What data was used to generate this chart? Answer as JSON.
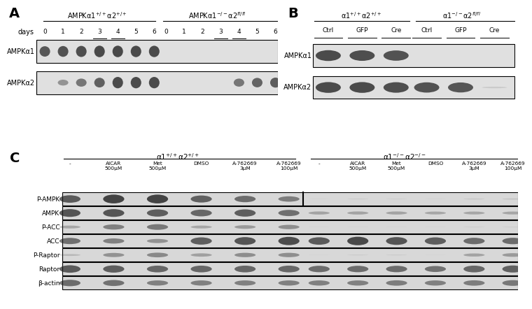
{
  "bg_color": "#ffffff",
  "panel_A": {
    "label": "A",
    "header1": "AMPKα1$^{+/+}$α2$^{+/+}$",
    "header2": "AMPKα1$^{-/-}$α2$^{fl/fl}$",
    "days_label": "days",
    "days_g1": [
      "0",
      "1",
      "2",
      "3",
      "4",
      "5",
      "6"
    ],
    "days_g2": [
      "0",
      "1",
      "2",
      "3",
      "4",
      "5",
      "6"
    ],
    "underline_days": [
      "3",
      "4"
    ],
    "row_labels": [
      "AMPKα1",
      "AMPKα2"
    ],
    "box_color": "#e0e0e0",
    "band_color": "#1a1a1a",
    "ampka1_g1": [
      0.75,
      0.78,
      0.8,
      0.83,
      0.83,
      0.82,
      0.82
    ],
    "ampka1_g2": [
      0.0,
      0.0,
      0.0,
      0.0,
      0.0,
      0.0,
      0.0
    ],
    "ampka2_g1": [
      0.0,
      0.42,
      0.58,
      0.7,
      0.82,
      0.82,
      0.82
    ],
    "ampka2_g2": [
      0.0,
      0.0,
      0.0,
      0.0,
      0.58,
      0.68,
      0.72
    ]
  },
  "panel_B": {
    "label": "B",
    "header1": "α1$^{+/+}$α2$^{+/+}$",
    "header2": "α1$^{-/-}$α2$^{fl/fl}$",
    "col_labels": [
      "Ctrl",
      "GFP",
      "Cre",
      "Ctrl",
      "GFP",
      "Cre"
    ],
    "row_labels": [
      "AMPKα1",
      "AMPKα2"
    ],
    "box_color": "#e0e0e0",
    "band_color": "#1a1a1a",
    "ampka1_g1": [
      0.82,
      0.8,
      0.78
    ],
    "ampka1_g2": [
      0.0,
      0.0,
      0.0
    ],
    "ampka2_g1": [
      0.82,
      0.82,
      0.8
    ],
    "ampka2_g2": [
      0.78,
      0.76,
      0.12
    ]
  },
  "panel_C": {
    "label": "C",
    "header1": "α1$^{+/+}$α2$^{+/+}$",
    "header2": "α1$^{-/-}$α2$^{-/-}$",
    "col_labels_g1": [
      "-",
      "AICAR\n500μM",
      "Met\n500μM",
      "DMSO",
      "A-762669\n3μM",
      "A-762669\n100μM"
    ],
    "col_labels_g2": [
      "-",
      "AICAR\n500μM",
      "Met\n500μM",
      "DMSO",
      "A-762669\n3μM",
      "A-762669\n100μM"
    ],
    "row_labels": [
      "P-AMPK",
      "AMPK",
      "P-ACC",
      "ACC",
      "P-Raptor",
      "Raptor",
      "β-actin"
    ],
    "box_color": "#d8d8d8",
    "band_color": "#1a1a1a",
    "p_ampk_g1": [
      0.72,
      0.85,
      0.85,
      0.68,
      0.62,
      0.52
    ],
    "p_ampk_g2": [
      0.05,
      0.08,
      0.07,
      0.05,
      0.1,
      0.12
    ],
    "ampk_g1": [
      0.75,
      0.75,
      0.7,
      0.65,
      0.7,
      0.6
    ],
    "ampk_g2": [
      0.3,
      0.3,
      0.3,
      0.28,
      0.28,
      0.28
    ],
    "p_acc_g1": [
      0.28,
      0.5,
      0.55,
      0.28,
      0.35,
      0.42
    ],
    "p_acc_g2": [
      0.04,
      0.04,
      0.04,
      0.04,
      0.07,
      0.07
    ],
    "acc_g1": [
      0.6,
      0.5,
      0.4,
      0.7,
      0.75,
      0.8
    ],
    "acc_g2": [
      0.72,
      0.82,
      0.75,
      0.7,
      0.62,
      0.62
    ],
    "p_raptor_g1": [
      0.18,
      0.4,
      0.45,
      0.32,
      0.42,
      0.42
    ],
    "p_raptor_g2": [
      0.04,
      0.08,
      0.08,
      0.04,
      0.3,
      0.35
    ],
    "raptor_g1": [
      0.72,
      0.7,
      0.65,
      0.65,
      0.65,
      0.65
    ],
    "raptor_g2": [
      0.62,
      0.62,
      0.62,
      0.58,
      0.65,
      0.68
    ],
    "b_actin_g1": [
      0.62,
      0.58,
      0.5,
      0.5,
      0.5,
      0.5
    ],
    "b_actin_g2": [
      0.5,
      0.5,
      0.52,
      0.5,
      0.52,
      0.55
    ]
  }
}
